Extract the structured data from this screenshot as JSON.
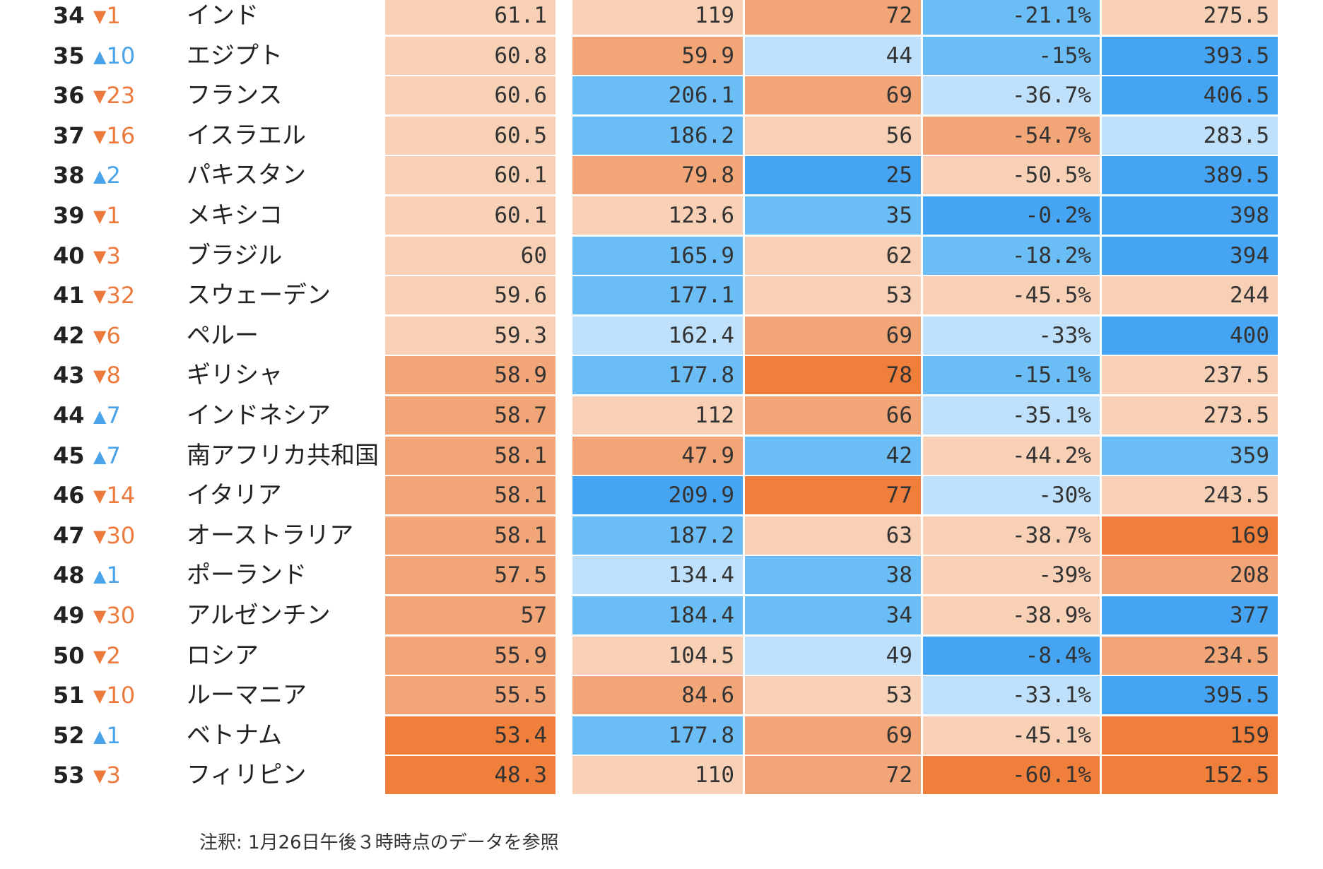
{
  "colors": {
    "orange_dark": "#ef7f3a",
    "orange_mid": "#f2a677",
    "orange_light": "#f8d0b6",
    "blue_pale": "#bee0fa",
    "blue_mid": "#6bbdf5",
    "blue_dark": "#45a5f3",
    "up_arrow": "#4aa3e8",
    "down_arrow": "#ec7a3d"
  },
  "rows": [
    {
      "rank": "34",
      "dir": "down",
      "arrow": "▼",
      "change": "1",
      "country": "インド",
      "cells": [
        {
          "v": "61.1",
          "c": "orange_light"
        },
        {
          "v": "119",
          "c": "orange_light"
        },
        {
          "v": "72",
          "c": "orange_mid"
        },
        {
          "v": "-21.1%",
          "c": "blue_mid"
        },
        {
          "v": "275.5",
          "c": "orange_light"
        }
      ]
    },
    {
      "rank": "35",
      "dir": "up",
      "arrow": "▲",
      "change": "10",
      "country": "エジプト",
      "cells": [
        {
          "v": "60.8",
          "c": "orange_light"
        },
        {
          "v": "59.9",
          "c": "orange_mid"
        },
        {
          "v": "44",
          "c": "blue_pale"
        },
        {
          "v": "-15%",
          "c": "blue_mid"
        },
        {
          "v": "393.5",
          "c": "blue_dark"
        }
      ]
    },
    {
      "rank": "36",
      "dir": "down",
      "arrow": "▼",
      "change": "23",
      "country": "フランス",
      "cells": [
        {
          "v": "60.6",
          "c": "orange_light"
        },
        {
          "v": "206.1",
          "c": "blue_mid"
        },
        {
          "v": "69",
          "c": "orange_mid"
        },
        {
          "v": "-36.7%",
          "c": "blue_pale"
        },
        {
          "v": "406.5",
          "c": "blue_dark"
        }
      ]
    },
    {
      "rank": "37",
      "dir": "down",
      "arrow": "▼",
      "change": "16",
      "country": "イスラエル",
      "cells": [
        {
          "v": "60.5",
          "c": "orange_light"
        },
        {
          "v": "186.2",
          "c": "blue_mid"
        },
        {
          "v": "56",
          "c": "orange_light"
        },
        {
          "v": "-54.7%",
          "c": "orange_mid"
        },
        {
          "v": "283.5",
          "c": "blue_pale"
        }
      ]
    },
    {
      "rank": "38",
      "dir": "up",
      "arrow": "▲",
      "change": "2",
      "country": "パキスタン",
      "cells": [
        {
          "v": "60.1",
          "c": "orange_light"
        },
        {
          "v": "79.8",
          "c": "orange_mid"
        },
        {
          "v": "25",
          "c": "blue_dark"
        },
        {
          "v": "-50.5%",
          "c": "orange_light"
        },
        {
          "v": "389.5",
          "c": "blue_dark"
        }
      ]
    },
    {
      "rank": "39",
      "dir": "down",
      "arrow": "▼",
      "change": "1",
      "country": "メキシコ",
      "cells": [
        {
          "v": "60.1",
          "c": "orange_light"
        },
        {
          "v": "123.6",
          "c": "orange_light"
        },
        {
          "v": "35",
          "c": "blue_mid"
        },
        {
          "v": "-0.2%",
          "c": "blue_dark"
        },
        {
          "v": "398",
          "c": "blue_dark"
        }
      ]
    },
    {
      "rank": "40",
      "dir": "down",
      "arrow": "▼",
      "change": "3",
      "country": "ブラジル",
      "cells": [
        {
          "v": "60",
          "c": "orange_light"
        },
        {
          "v": "165.9",
          "c": "blue_mid"
        },
        {
          "v": "62",
          "c": "orange_light"
        },
        {
          "v": "-18.2%",
          "c": "blue_mid"
        },
        {
          "v": "394",
          "c": "blue_dark"
        }
      ]
    },
    {
      "rank": "41",
      "dir": "down",
      "arrow": "▼",
      "change": "32",
      "country": "スウェーデン",
      "cells": [
        {
          "v": "59.6",
          "c": "orange_light"
        },
        {
          "v": "177.1",
          "c": "blue_mid"
        },
        {
          "v": "53",
          "c": "orange_light"
        },
        {
          "v": "-45.5%",
          "c": "orange_light"
        },
        {
          "v": "244",
          "c": "orange_light"
        }
      ]
    },
    {
      "rank": "42",
      "dir": "down",
      "arrow": "▼",
      "change": "6",
      "country": "ペルー",
      "cells": [
        {
          "v": "59.3",
          "c": "orange_light"
        },
        {
          "v": "162.4",
          "c": "blue_pale"
        },
        {
          "v": "69",
          "c": "orange_mid"
        },
        {
          "v": "-33%",
          "c": "blue_pale"
        },
        {
          "v": "400",
          "c": "blue_dark"
        }
      ]
    },
    {
      "rank": "43",
      "dir": "down",
      "arrow": "▼",
      "change": "8",
      "country": "ギリシャ",
      "cells": [
        {
          "v": "58.9",
          "c": "orange_mid"
        },
        {
          "v": "177.8",
          "c": "blue_mid"
        },
        {
          "v": "78",
          "c": "orange_dark"
        },
        {
          "v": "-15.1%",
          "c": "blue_mid"
        },
        {
          "v": "237.5",
          "c": "orange_light"
        }
      ]
    },
    {
      "rank": "44",
      "dir": "up",
      "arrow": "▲",
      "change": "7",
      "country": "インドネシア",
      "cells": [
        {
          "v": "58.7",
          "c": "orange_mid"
        },
        {
          "v": "112",
          "c": "orange_light"
        },
        {
          "v": "66",
          "c": "orange_mid"
        },
        {
          "v": "-35.1%",
          "c": "blue_pale"
        },
        {
          "v": "273.5",
          "c": "orange_light"
        }
      ]
    },
    {
      "rank": "45",
      "dir": "up",
      "arrow": "▲",
      "change": "7",
      "country": "南アフリカ共和国",
      "cells": [
        {
          "v": "58.1",
          "c": "orange_mid"
        },
        {
          "v": "47.9",
          "c": "orange_mid"
        },
        {
          "v": "42",
          "c": "blue_mid"
        },
        {
          "v": "-44.2%",
          "c": "orange_light"
        },
        {
          "v": "359",
          "c": "blue_mid"
        }
      ]
    },
    {
      "rank": "46",
      "dir": "down",
      "arrow": "▼",
      "change": "14",
      "country": "イタリア",
      "cells": [
        {
          "v": "58.1",
          "c": "orange_mid"
        },
        {
          "v": "209.9",
          "c": "blue_dark"
        },
        {
          "v": "77",
          "c": "orange_dark"
        },
        {
          "v": "-30%",
          "c": "blue_pale"
        },
        {
          "v": "243.5",
          "c": "orange_light"
        }
      ]
    },
    {
      "rank": "47",
      "dir": "down",
      "arrow": "▼",
      "change": "30",
      "country": "オーストラリア",
      "cells": [
        {
          "v": "58.1",
          "c": "orange_mid"
        },
        {
          "v": "187.2",
          "c": "blue_mid"
        },
        {
          "v": "63",
          "c": "orange_light"
        },
        {
          "v": "-38.7%",
          "c": "orange_light"
        },
        {
          "v": "169",
          "c": "orange_dark"
        }
      ]
    },
    {
      "rank": "48",
      "dir": "up",
      "arrow": "▲",
      "change": "1",
      "country": "ポーランド",
      "cells": [
        {
          "v": "57.5",
          "c": "orange_mid"
        },
        {
          "v": "134.4",
          "c": "blue_pale"
        },
        {
          "v": "38",
          "c": "blue_mid"
        },
        {
          "v": "-39%",
          "c": "orange_light"
        },
        {
          "v": "208",
          "c": "orange_mid"
        }
      ]
    },
    {
      "rank": "49",
      "dir": "down",
      "arrow": "▼",
      "change": "30",
      "country": "アルゼンチン",
      "cells": [
        {
          "v": "57",
          "c": "orange_mid"
        },
        {
          "v": "184.4",
          "c": "blue_mid"
        },
        {
          "v": "34",
          "c": "blue_mid"
        },
        {
          "v": "-38.9%",
          "c": "orange_light"
        },
        {
          "v": "377",
          "c": "blue_dark"
        }
      ]
    },
    {
      "rank": "50",
      "dir": "down",
      "arrow": "▼",
      "change": "2",
      "country": "ロシア",
      "cells": [
        {
          "v": "55.9",
          "c": "orange_mid"
        },
        {
          "v": "104.5",
          "c": "orange_light"
        },
        {
          "v": "49",
          "c": "blue_pale"
        },
        {
          "v": "-8.4%",
          "c": "blue_dark"
        },
        {
          "v": "234.5",
          "c": "orange_mid"
        }
      ]
    },
    {
      "rank": "51",
      "dir": "down",
      "arrow": "▼",
      "change": "10",
      "country": "ルーマニア",
      "cells": [
        {
          "v": "55.5",
          "c": "orange_mid"
        },
        {
          "v": "84.6",
          "c": "orange_mid"
        },
        {
          "v": "53",
          "c": "orange_light"
        },
        {
          "v": "-33.1%",
          "c": "blue_pale"
        },
        {
          "v": "395.5",
          "c": "blue_dark"
        }
      ]
    },
    {
      "rank": "52",
      "dir": "up",
      "arrow": "▲",
      "change": "1",
      "country": "ベトナム",
      "cells": [
        {
          "v": "53.4",
          "c": "orange_dark"
        },
        {
          "v": "177.8",
          "c": "blue_mid"
        },
        {
          "v": "69",
          "c": "orange_mid"
        },
        {
          "v": "-45.1%",
          "c": "orange_light"
        },
        {
          "v": "159",
          "c": "orange_dark"
        }
      ]
    },
    {
      "rank": "53",
      "dir": "down",
      "arrow": "▼",
      "change": "3",
      "country": "フィリピン",
      "cells": [
        {
          "v": "48.3",
          "c": "orange_dark"
        },
        {
          "v": "110",
          "c": "orange_light"
        },
        {
          "v": "72",
          "c": "orange_mid"
        },
        {
          "v": "-60.1%",
          "c": "orange_dark"
        },
        {
          "v": "152.5",
          "c": "orange_dark"
        }
      ]
    }
  ],
  "note": "注釈: 1月26日午後３時時点のデータを参照"
}
